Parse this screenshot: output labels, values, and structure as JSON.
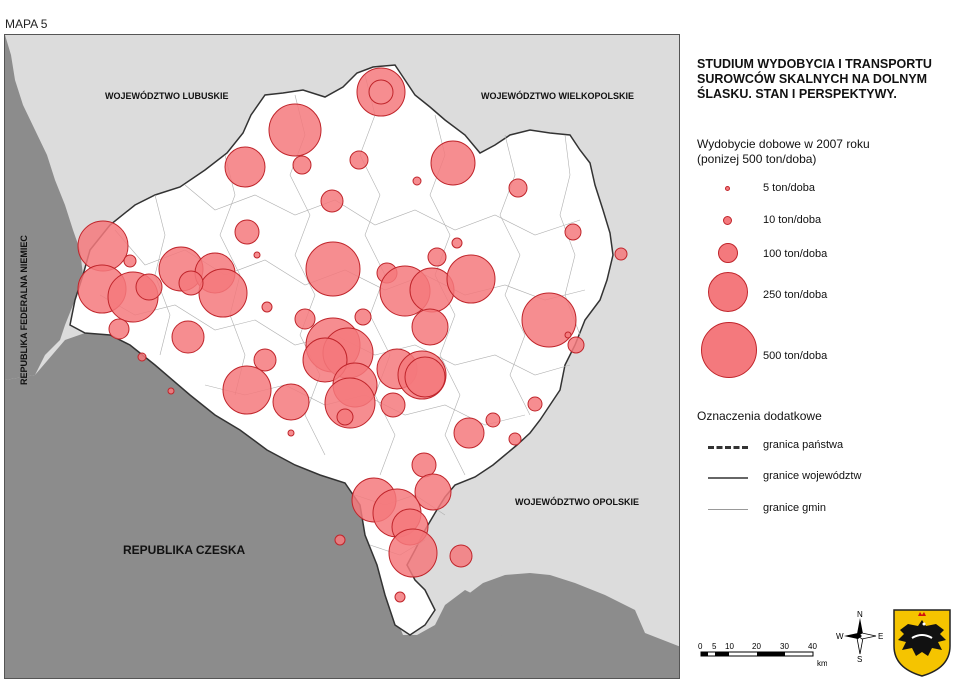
{
  "map_label": "MAPA 5",
  "title": "STUDIUM WYDOBYCIA I TRANSPORTU SUROWCÓW SKALNYCH NA DOLNYM ŚLASKU. STAN I PERSPEKTYWY.",
  "legend": {
    "title_line1": "Wydobycie dobowe w 2007 roku",
    "title_line2": "(ponizej 500 ton/doba)",
    "items": [
      {
        "label": "5 ton/doba"
      },
      {
        "label": "10 ton/doba"
      },
      {
        "label": "100 ton/doba"
      },
      {
        "label": "250 ton/doba"
      },
      {
        "label": "500 ton/doba"
      }
    ]
  },
  "extra": {
    "title": "Oznaczenia dodatkowe",
    "items": [
      {
        "label": "granica państwa"
      },
      {
        "label": "granice województw"
      },
      {
        "label": "granice gmin"
      }
    ]
  },
  "regions": {
    "lubuskie": "WOJEWÓDZTWO LUBUSKIE",
    "wielkopolskie": "WOJEWÓDZTWO WIELKOPOLSKIE",
    "opolskie": "WOJEWÓDZTWO OPOLSKIE",
    "niemcy": "REPUBLIKA FEDERALNA NIEMIEC",
    "czechy": "REPUBLIKA CZESKA"
  },
  "scale": {
    "ticks": [
      "0",
      "5",
      "10",
      "20",
      "30",
      "40"
    ],
    "unit": "km"
  },
  "compass": {
    "n": "N",
    "e": "E",
    "s": "S",
    "w": "W"
  },
  "colors": {
    "symbol_fill": "#f4797d",
    "symbol_stroke": "#c0252b",
    "voivodeship_fill": "#ffffff",
    "neighbor_fill": "#dcdcdc",
    "foreign_fill": "#8c8c8c"
  }
}
